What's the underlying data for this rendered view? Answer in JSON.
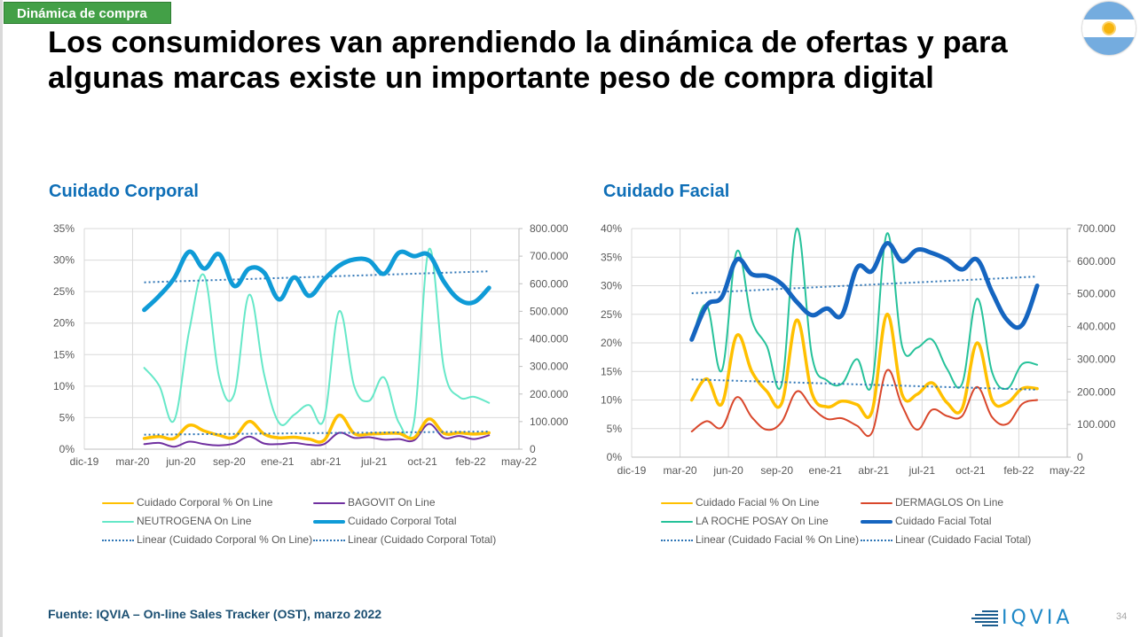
{
  "header": {
    "section_tag": "Dinámica de compra",
    "title_line1": "Los consumidores van aprendiendo la dinámica de ofertas y para",
    "title_line2": "algunas marcas existe un importante peso de compra digital",
    "flag_icon": "argentina-flag-icon"
  },
  "footer": {
    "source": "Fuente: IQVIA – On-line Sales Tracker (OST), marzo 2022",
    "logo_text": "IQVIA",
    "page_number": "34"
  },
  "colors": {
    "pct_online": "#ffc000",
    "brand1_corporal": "#7030a0",
    "brand2_corporal": "#66e8c8",
    "total_corporal": "#0f9bd7",
    "brand1_facial": "#d9472b",
    "brand2_facial": "#26c29a",
    "total_facial": "#1565c0",
    "trend": "#2e75b6",
    "grid": "#d9d9d9",
    "title_blue": "#0f6fb7",
    "tag_green": "#43a047"
  },
  "chart_data": [
    {
      "type": "line",
      "title": "Cuidado Corporal",
      "x_tick_labels": [
        "dic-19",
        "mar-20",
        "jun-20",
        "sep-20",
        "ene-21",
        "abr-21",
        "jul-21",
        "oct-21",
        "feb-22",
        "may-22"
      ],
      "x": [
        "abr-20",
        "may-20",
        "jun-20",
        "jul-20",
        "ago-20",
        "sep-20",
        "oct-20",
        "nov-20",
        "dic-20",
        "ene-21",
        "feb-21",
        "mar-21",
        "abr-21",
        "may-21",
        "jun-21",
        "jul-21",
        "ago-21",
        "sep-21",
        "oct-21",
        "nov-21",
        "dic-21",
        "ene-22",
        "feb-22",
        "mar-22"
      ],
      "y_left": {
        "min": 0,
        "max": 0.35,
        "ticks": [
          "0%",
          "5%",
          "10%",
          "15%",
          "20%",
          "25%",
          "30%",
          "35%"
        ]
      },
      "y_right": {
        "min": 0,
        "max": 800000,
        "ticks": [
          "0",
          "100.000",
          "200.000",
          "300.000",
          "400.000",
          "500.000",
          "600.000",
          "700.000",
          "800.000"
        ]
      },
      "grid": true,
      "legend_position": "bottom",
      "series": [
        {
          "name": "Cuidado Corporal % On Line",
          "axis": "left",
          "color_key": "pct_online",
          "style": "thick",
          "values": [
            0.017,
            0.02,
            0.017,
            0.038,
            0.029,
            0.022,
            0.019,
            0.044,
            0.024,
            0.018,
            0.019,
            0.016,
            0.014,
            0.054,
            0.025,
            0.024,
            0.025,
            0.025,
            0.018,
            0.048,
            0.025,
            0.026,
            0.024,
            0.026
          ]
        },
        {
          "name": "BAGOVIT On Line",
          "axis": "left",
          "color_key": "brand1_corporal",
          "style": "thin",
          "values": [
            0.008,
            0.01,
            0.004,
            0.012,
            0.008,
            0.006,
            0.009,
            0.02,
            0.009,
            0.008,
            0.01,
            0.007,
            0.008,
            0.026,
            0.018,
            0.019,
            0.015,
            0.016,
            0.014,
            0.04,
            0.018,
            0.021,
            0.016,
            0.022
          ]
        },
        {
          "name": "NEUTROGENA On Line",
          "axis": "right",
          "color_key": "brand2_corporal",
          "style": "thin",
          "values": [
            295000,
            230000,
            105000,
            430000,
            630000,
            260000,
            200000,
            560000,
            270000,
            95000,
            125000,
            160000,
            110000,
            500000,
            230000,
            175000,
            260000,
            95000,
            100000,
            725000,
            290000,
            190000,
            190000,
            168000
          ]
        },
        {
          "name": "Cuidado Corporal Total",
          "axis": "right",
          "color_key": "total_corporal",
          "style": "bold",
          "values": [
            505000,
            556000,
            620000,
            716000,
            655000,
            707000,
            592000,
            655000,
            640000,
            543000,
            623000,
            556000,
            615000,
            665000,
            688000,
            684000,
            636000,
            713000,
            700000,
            704000,
            607000,
            543000,
            533000,
            585000
          ]
        },
        {
          "name": "Linear (Cuidado Corporal % On Line)",
          "axis": "left",
          "color_key": "trend",
          "style": "dotted",
          "trend_of": "Cuidado Corporal % On Line",
          "start_value": 0.023,
          "end_value": 0.028
        },
        {
          "name": "Linear (Cuidado Corporal Total)",
          "axis": "right",
          "color_key": "trend",
          "style": "dotted",
          "trend_of": "Cuidado Corporal Total",
          "start_value": 605000,
          "end_value": 645000
        }
      ]
    },
    {
      "type": "line",
      "title": "Cuidado Facial",
      "x_tick_labels": [
        "dic-19",
        "mar-20",
        "jun-20",
        "sep-20",
        "ene-21",
        "abr-21",
        "jul-21",
        "oct-21",
        "feb-22",
        "may-22"
      ],
      "x": [
        "abr-20",
        "may-20",
        "jun-20",
        "jul-20",
        "ago-20",
        "sep-20",
        "oct-20",
        "nov-20",
        "dic-20",
        "ene-21",
        "feb-21",
        "mar-21",
        "abr-21",
        "may-21",
        "jun-21",
        "jul-21",
        "ago-21",
        "sep-21",
        "oct-21",
        "nov-21",
        "dic-21",
        "ene-22",
        "feb-22",
        "mar-22"
      ],
      "y_left": {
        "min": 0,
        "max": 0.4,
        "ticks": [
          "0%",
          "5%",
          "10%",
          "15%",
          "20%",
          "25%",
          "30%",
          "35%",
          "40%"
        ]
      },
      "y_right": {
        "min": 0,
        "max": 700000,
        "ticks": [
          "0",
          "100.000",
          "200.000",
          "300.000",
          "400.000",
          "500.000",
          "600.000",
          "700.000"
        ]
      },
      "grid": true,
      "legend_position": "bottom",
      "series": [
        {
          "name": "Cuidado Facial % On Line",
          "axis": "left",
          "color_key": "pct_online",
          "style": "thick",
          "values": [
            0.1,
            0.137,
            0.093,
            0.213,
            0.15,
            0.115,
            0.095,
            0.24,
            0.112,
            0.088,
            0.098,
            0.092,
            0.08,
            0.25,
            0.11,
            0.11,
            0.13,
            0.095,
            0.085,
            0.2,
            0.1,
            0.095,
            0.12,
            0.12
          ]
        },
        {
          "name": "DERMAGLOS On Line",
          "axis": "left",
          "color_key": "brand1_facial",
          "style": "thin",
          "values": [
            0.045,
            0.063,
            0.052,
            0.105,
            0.07,
            0.048,
            0.062,
            0.115,
            0.087,
            0.067,
            0.068,
            0.055,
            0.043,
            0.152,
            0.09,
            0.048,
            0.083,
            0.072,
            0.072,
            0.123,
            0.07,
            0.058,
            0.093,
            0.1
          ]
        },
        {
          "name": "LA ROCHE POSAY On Line",
          "axis": "right",
          "color_key": "brand2_facial",
          "style": "thin",
          "values": [
            360000,
            465000,
            265000,
            630000,
            420000,
            340000,
            225000,
            700000,
            310000,
            235000,
            225000,
            300000,
            225000,
            685000,
            340000,
            335000,
            360000,
            270000,
            225000,
            485000,
            260000,
            210000,
            285000,
            283000
          ]
        },
        {
          "name": "Cuidado Facial Total",
          "axis": "right",
          "color_key": "total_facial",
          "style": "bold",
          "values": [
            360000,
            465000,
            490000,
            605000,
            560000,
            555000,
            530000,
            475000,
            435000,
            455000,
            435000,
            580000,
            570000,
            655000,
            600000,
            635000,
            625000,
            605000,
            575000,
            605000,
            505000,
            420000,
            405000,
            525000
          ]
        },
        {
          "name": "Linear (Cuidado Facial % On Line)",
          "axis": "left",
          "color_key": "trend",
          "style": "dotted",
          "trend_of": "Cuidado Facial % On Line",
          "start_value": 0.136,
          "end_value": 0.118
        },
        {
          "name": "Linear (Cuidado Facial Total)",
          "axis": "right",
          "color_key": "trend",
          "style": "dotted",
          "trend_of": "Cuidado Facial Total",
          "start_value": 502000,
          "end_value": 553000
        }
      ]
    }
  ]
}
